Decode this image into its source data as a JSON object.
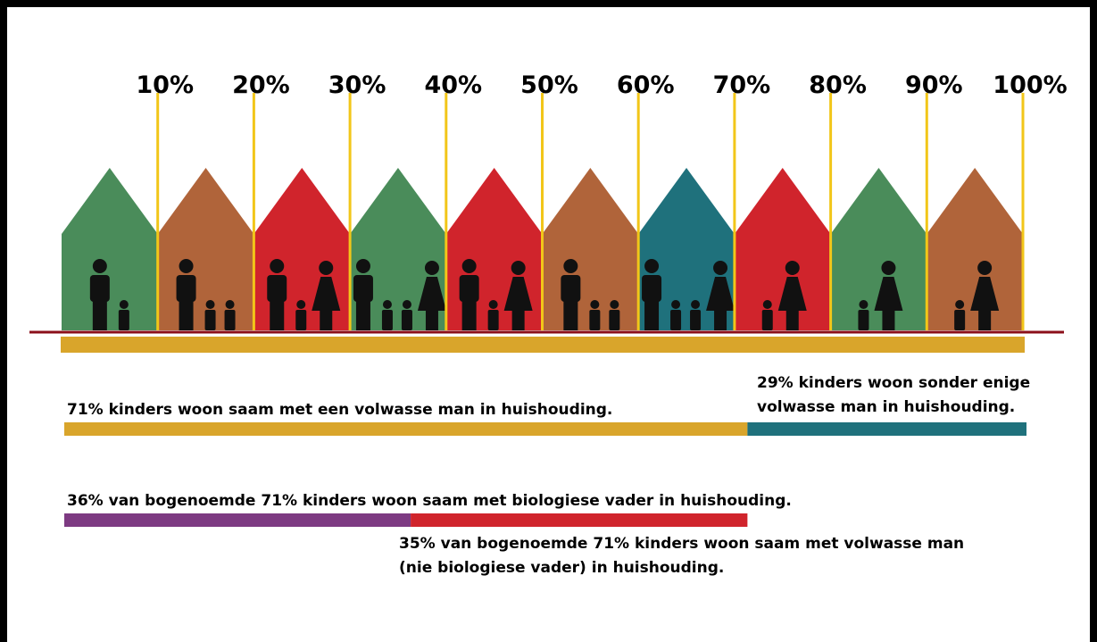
{
  "scale": {
    "xlim": [
      0,
      100
    ],
    "xticks": [
      {
        "value": 10,
        "label": "10%"
      },
      {
        "value": 20,
        "label": "20%"
      },
      {
        "value": 30,
        "label": "30%"
      },
      {
        "value": 40,
        "label": "40%"
      },
      {
        "value": 50,
        "label": "50%"
      },
      {
        "value": 60,
        "label": "60%"
      },
      {
        "value": 70,
        "label": "70%"
      },
      {
        "value": 80,
        "label": "80%"
      },
      {
        "value": 90,
        "label": "90%"
      },
      {
        "value": 100,
        "label": "100%"
      }
    ]
  },
  "houses": [
    "#4a8c5a",
    "#b0643a",
    "#d0242c",
    "#4a8c5a",
    "#d0242c",
    "#b0643a",
    "#1f717c",
    "#d0242c",
    "#4a8c5a",
    "#b0643a"
  ],
  "bars": [
    {
      "lines": [
        "71% kinders woon saam met een volwasse man in huishouding."
      ],
      "value": 71,
      "color": "#d9a52b"
    },
    {
      "lines": [
        "29% kinders woon sonder enige",
        "volwasse man in huishouding."
      ],
      "value": 29,
      "color": "#1f717c"
    }
  ],
  "sub_bars": [
    {
      "lines": [
        "36% van bogenoemde 71% kinders woon saam met biologiese vader in huishouding."
      ],
      "value": 36,
      "color": "#7d3a82"
    },
    {
      "lines": [
        "35% van bogenoemde 71% kinders woon saam met volwasse man",
        "(nie biologiese vader) in huishouding."
      ],
      "value": 35,
      "color": "#d0242c"
    }
  ]
}
